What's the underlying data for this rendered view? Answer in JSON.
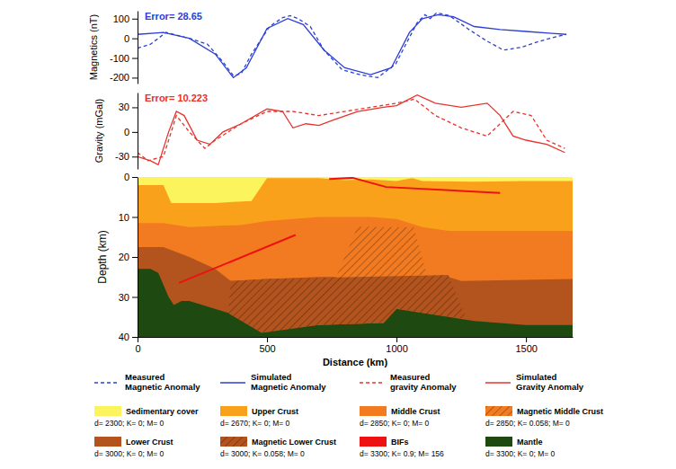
{
  "chart_data": [
    {
      "type": "line",
      "annotation": "Error= 28.65",
      "color": "#2b3fd6",
      "ylabel": "Magnetics (nT)",
      "xlim": [
        0,
        1680
      ],
      "ylim": [
        -230,
        140
      ],
      "yticks": [
        -200,
        -100,
        0,
        100
      ],
      "tick_labels": "y",
      "legend": "bottom",
      "series": [
        {
          "name": "Measured Magnetic Anomaly",
          "color": "#2b3fd6",
          "line_style": "dashed",
          "x": [
            0,
            50,
            110,
            200,
            270,
            330,
            370,
            400,
            440,
            510,
            560,
            590,
            620,
            667,
            720,
            790,
            860,
            927,
            997,
            1040,
            1080,
            1110,
            1130,
            1155,
            1205,
            1274,
            1344,
            1413,
            1483,
            1552,
            1622,
            1656
          ],
          "values": [
            -50,
            -30,
            30,
            0,
            -30,
            -120,
            -190,
            -180,
            -80,
            60,
            105,
            115,
            100,
            60,
            -60,
            -160,
            -185,
            -200,
            -130,
            -20,
            80,
            120,
            100,
            130,
            115,
            50,
            -10,
            -60,
            -45,
            -15,
            10,
            20
          ]
        },
        {
          "name": "Simulated Magnetic Anomaly",
          "color": "#2b3fd6",
          "line_style": "solid",
          "x": [
            0,
            100,
            200,
            300,
            370,
            420,
            500,
            580,
            640,
            720,
            800,
            900,
            980,
            1050,
            1100,
            1160,
            1220,
            1300,
            1400,
            1500,
            1600,
            1656
          ],
          "values": [
            20,
            30,
            0,
            -80,
            -200,
            -150,
            50,
            100,
            70,
            -60,
            -150,
            -185,
            -150,
            30,
            100,
            120,
            110,
            60,
            45,
            35,
            25,
            20
          ]
        }
      ]
    },
    {
      "type": "line",
      "annotation": "Error= 10.223",
      "color": "#e8322c",
      "ylabel": "Gravity (mGal)",
      "xlim": [
        0,
        1680
      ],
      "ylim": [
        -45,
        48
      ],
      "yticks": [
        -30,
        0,
        30
      ],
      "tick_labels": "y",
      "legend": "bottom",
      "series": [
        {
          "name": "Measured gravity Anomaly",
          "color": "#e8322c",
          "line_style": "dashed",
          "x": [
            0,
            40,
            100,
            150,
            200,
            260,
            300,
            400,
            500,
            600,
            700,
            800,
            900,
            1000,
            1070,
            1150,
            1250,
            1350,
            1450,
            1520,
            1580,
            1650
          ],
          "values": [
            -25,
            -35,
            -30,
            20,
            0,
            -20,
            -10,
            10,
            25,
            25,
            20,
            25,
            30,
            35,
            40,
            20,
            5,
            -5,
            25,
            20,
            -10,
            -20
          ]
        },
        {
          "name": "Simulated Gravity Anomaly",
          "color": "#e8322c",
          "line_style": "solid",
          "x": [
            0,
            50,
            80,
            120,
            150,
            180,
            230,
            280,
            330,
            400,
            500,
            560,
            600,
            650,
            700,
            760,
            850,
            950,
            1000,
            1080,
            1150,
            1250,
            1350,
            1400,
            1450,
            1500,
            1580,
            1650
          ],
          "values": [
            -30,
            -35,
            -40,
            0,
            25,
            20,
            -10,
            -15,
            0,
            10,
            28,
            25,
            5,
            10,
            8,
            15,
            25,
            30,
            32,
            45,
            35,
            30,
            35,
            20,
            -5,
            -10,
            -15,
            -25
          ]
        }
      ]
    },
    {
      "type": "cross_section",
      "xlabel": "Distance (km)",
      "ylabel": "Depth (km)",
      "xlim": [
        0,
        1680
      ],
      "ylim": [
        0,
        40
      ],
      "xticks": [
        0,
        500,
        1000,
        1500
      ],
      "yticks": [
        0,
        10,
        20,
        30,
        40
      ],
      "legend": "bottom",
      "series": [
        {
          "name": "Sedimentary cover",
          "type": "area",
          "color": "#fbf45c",
          "properties": "d= 2300; K= 0; M= 0",
          "x": [
            0,
            1680
          ],
          "values": [
            0,
            0
          ]
        },
        {
          "name": "Upper Crust",
          "type": "area",
          "color": "#f9a11b",
          "properties": "d= 2670; K= 0; M= 0",
          "x": [
            0,
            100,
            130,
            300,
            440,
            500,
            700,
            800,
            900,
            1000,
            1060,
            1100,
            1300,
            1500,
            1680
          ],
          "values": [
            2,
            2,
            6.5,
            6.5,
            6,
            0.3,
            0.3,
            0.8,
            0.6,
            1,
            0.3,
            1,
            1.2,
            1,
            1
          ]
        },
        {
          "name": "Middle Crust",
          "type": "area",
          "color": "#f27b21",
          "properties": "d= 2850; K= 0; M= 0",
          "x": [
            0,
            100,
            200,
            400,
            500,
            700,
            900,
            1000,
            1100,
            1200,
            1400,
            1680
          ],
          "values": [
            11.5,
            11.5,
            12.5,
            12,
            11,
            10,
            10,
            10.5,
            12.5,
            13.5,
            13.5,
            13.5
          ]
        },
        {
          "name": "Magnetic Middle Crust",
          "type": "polygon",
          "color": "#f27b21",
          "line_style": "hatched",
          "properties": "d= 2850; K= 0.058; M= 0",
          "x": [
            850,
            1066,
            1118,
            764
          ],
          "values": [
            12.4,
            12.6,
            24.5,
            25.4
          ]
        },
        {
          "name": "Lower Crust",
          "type": "area",
          "color": "#b3541e",
          "properties": "d= 3000; K= 0; M= 0",
          "x": [
            0,
            100,
            200,
            300,
            360,
            500,
            700,
            1000,
            1200,
            1250,
            1680
          ],
          "values": [
            17.5,
            17.5,
            20,
            23,
            26,
            25.5,
            25,
            25,
            25,
            26,
            25.5
          ]
        },
        {
          "name": "Magnetic Lower Crust",
          "type": "polygon",
          "color": "#b3541e",
          "line_style": "hatched",
          "properties": "d= 3000; K= 0.058; M= 0",
          "x": [
            360,
            500,
            1200,
            1270,
            1100,
            1000,
            950,
            700,
            480,
            350
          ],
          "values": [
            26,
            25.5,
            24.5,
            35.5,
            34,
            33,
            36.5,
            37,
            39,
            34
          ]
        },
        {
          "name": "BIFs",
          "type": "line",
          "color": "#ee1111",
          "properties": "d= 3300; K= 0.9; M= 156",
          "x": [
            160,
            610,
            620,
            740,
            830,
            960,
            1400
          ],
          "values": [
            26.5,
            14.5,
            null,
            0.5,
            0.2,
            2.5,
            4
          ]
        },
        {
          "name": "Mantle",
          "type": "area",
          "color": "#1e4a12",
          "properties": "d= 3300; K= 0; M= 0",
          "x": [
            0,
            50,
            80,
            120,
            140,
            170,
            200,
            350,
            480,
            520,
            700,
            950,
            1000,
            1100,
            1300,
            1500,
            1680
          ],
          "values": [
            23,
            23,
            24,
            30,
            32,
            31,
            31,
            34,
            39,
            38,
            37,
            36.5,
            33,
            34,
            36,
            37,
            37
          ]
        }
      ]
    }
  ]
}
